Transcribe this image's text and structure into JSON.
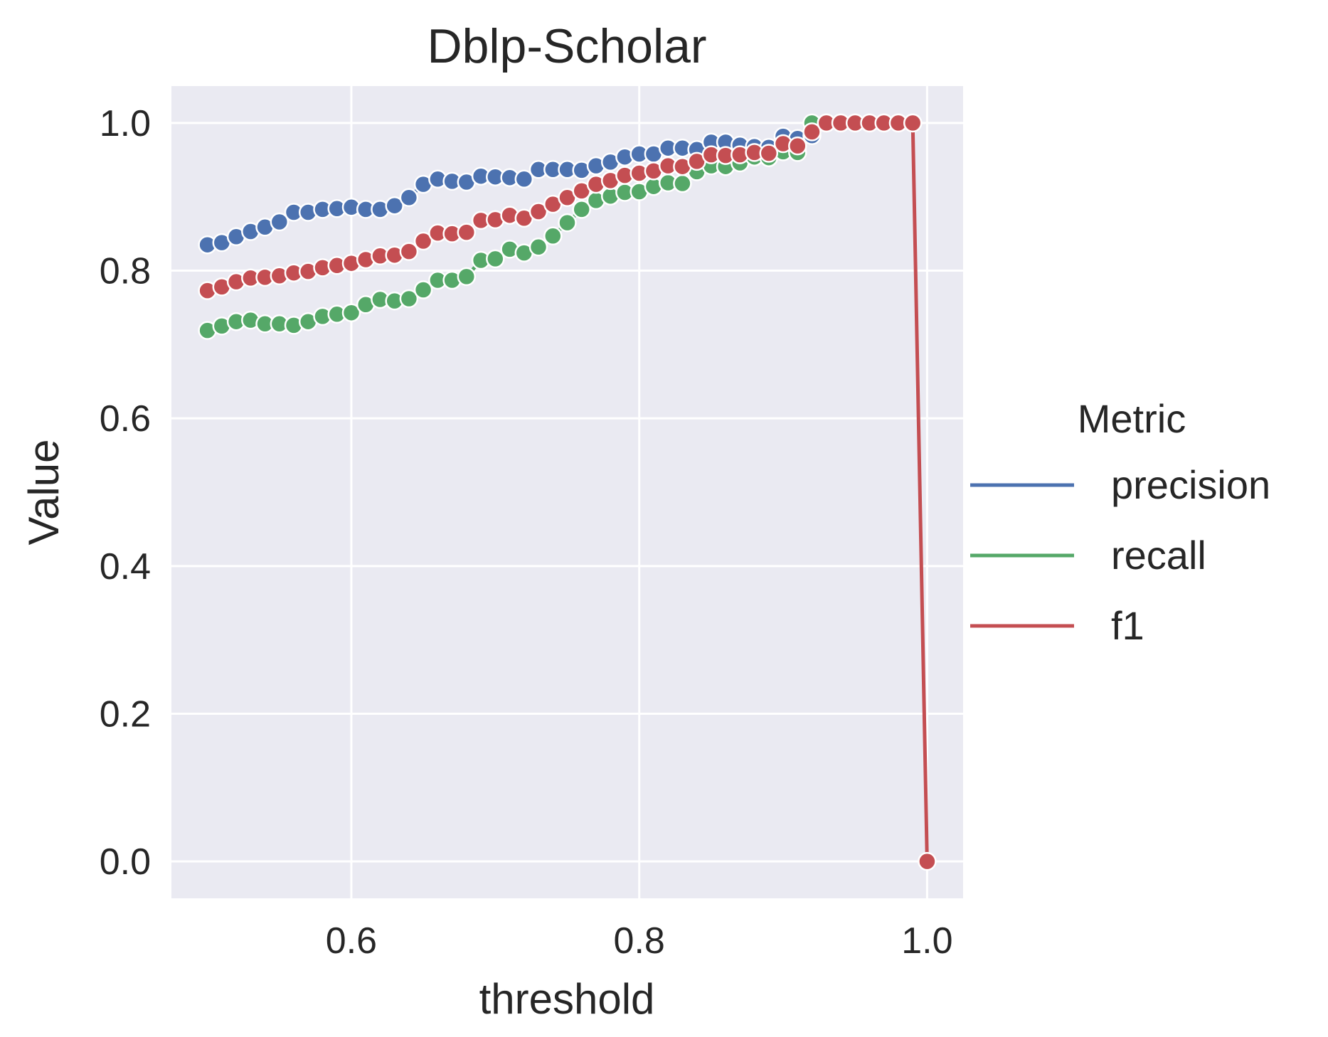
{
  "chart_data": {
    "type": "line",
    "title": "Dblp-Scholar",
    "xlabel": "threshold",
    "ylabel": "Value",
    "xlim": [
      0.475,
      1.025
    ],
    "ylim": [
      -0.05,
      1.05
    ],
    "xticks": [
      0.6,
      0.8,
      1.0
    ],
    "xtick_labels": [
      "0.6",
      "0.8",
      "1.0"
    ],
    "yticks": [
      0.0,
      0.2,
      0.4,
      0.6,
      0.8,
      1.0
    ],
    "ytick_labels": [
      "0.0",
      "0.2",
      "0.4",
      "0.6",
      "0.8",
      "1.0"
    ],
    "grid": true,
    "legend": {
      "title": "Metric",
      "placement": "center-right-outside"
    },
    "x": [
      0.5,
      0.51,
      0.52,
      0.53,
      0.54,
      0.55,
      0.56,
      0.57,
      0.58,
      0.59,
      0.6,
      0.61,
      0.62,
      0.63,
      0.64,
      0.65,
      0.66,
      0.67,
      0.68,
      0.69,
      0.7,
      0.71,
      0.72,
      0.73,
      0.74,
      0.75,
      0.76,
      0.77,
      0.78,
      0.79,
      0.8,
      0.81,
      0.82,
      0.83,
      0.84,
      0.85,
      0.86,
      0.87,
      0.88,
      0.89,
      0.9,
      0.91,
      0.92,
      0.93,
      0.94,
      0.95,
      0.96,
      0.97,
      0.98,
      0.99,
      1.0
    ],
    "series": [
      {
        "name": "precision",
        "color": "#4c72b0",
        "values": [
          0.835,
          0.838,
          0.846,
          0.853,
          0.859,
          0.866,
          0.879,
          0.879,
          0.883,
          0.884,
          0.886,
          0.883,
          0.883,
          0.888,
          0.899,
          0.917,
          0.924,
          0.921,
          0.92,
          0.928,
          0.927,
          0.926,
          0.924,
          0.937,
          0.937,
          0.937,
          0.936,
          0.942,
          0.947,
          0.954,
          0.958,
          0.958,
          0.966,
          0.966,
          0.964,
          0.974,
          0.974,
          0.97,
          0.968,
          0.967,
          0.982,
          0.979,
          0.983,
          1.0,
          1.0,
          1.0,
          1.0,
          1.0,
          1.0,
          1.0,
          null
        ]
      },
      {
        "name": "recall",
        "color": "#55a868",
        "values": [
          0.719,
          0.725,
          0.731,
          0.733,
          0.728,
          0.728,
          0.726,
          0.731,
          0.738,
          0.741,
          0.743,
          0.754,
          0.761,
          0.759,
          0.762,
          0.774,
          0.787,
          0.787,
          0.792,
          0.814,
          0.816,
          0.829,
          0.824,
          0.832,
          0.847,
          0.865,
          0.883,
          0.895,
          0.901,
          0.906,
          0.907,
          0.914,
          0.919,
          0.918,
          0.934,
          0.942,
          0.941,
          0.946,
          0.954,
          0.953,
          0.961,
          0.96,
          1.0,
          1.0,
          1.0,
          1.0,
          1.0,
          1.0,
          1.0,
          1.0,
          null
        ]
      },
      {
        "name": "f1",
        "color": "#c44e52",
        "values": [
          0.773,
          0.778,
          0.785,
          0.79,
          0.791,
          0.793,
          0.797,
          0.799,
          0.804,
          0.807,
          0.81,
          0.815,
          0.82,
          0.821,
          0.826,
          0.84,
          0.851,
          0.85,
          0.852,
          0.868,
          0.869,
          0.875,
          0.871,
          0.88,
          0.89,
          0.899,
          0.908,
          0.917,
          0.922,
          0.929,
          0.932,
          0.935,
          0.942,
          0.941,
          0.948,
          0.957,
          0.956,
          0.957,
          0.96,
          0.959,
          0.972,
          0.969,
          0.988,
          1.0,
          1.0,
          1.0,
          1.0,
          1.0,
          1.0,
          1.0,
          0.0
        ]
      }
    ]
  }
}
